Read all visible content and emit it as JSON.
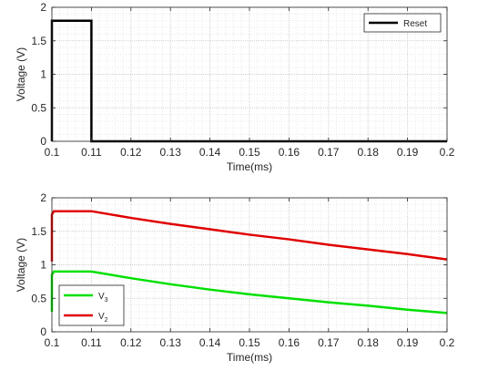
{
  "chart_data": [
    {
      "type": "line",
      "xlabel": "Time(ms)",
      "ylabel": "Voltage (V)",
      "xlim": [
        0.1,
        0.2
      ],
      "ylim": [
        0,
        2
      ],
      "xticks": [
        "0.1",
        "0.11",
        "0.12",
        "0.13",
        "0.14",
        "0.15",
        "0.16",
        "0.17",
        "0.18",
        "0.19",
        "0.2"
      ],
      "yticks": [
        "0",
        "0.5",
        "1",
        "1.5",
        "2"
      ],
      "grid": "on (major and minor, dotted)",
      "legend_location": "top-right",
      "series": [
        {
          "name": "Reset",
          "color": "#000000",
          "x": [
            0.1,
            0.1,
            0.11,
            0.11,
            0.2
          ],
          "y": [
            0,
            1.8,
            1.8,
            0,
            0
          ]
        }
      ]
    },
    {
      "type": "line",
      "xlabel": "Time(ms)",
      "ylabel": "Voltage (V)",
      "xlim": [
        0.1,
        0.2
      ],
      "ylim": [
        0,
        2
      ],
      "xticks": [
        "0.1",
        "0.11",
        "0.12",
        "0.13",
        "0.14",
        "0.15",
        "0.16",
        "0.17",
        "0.18",
        "0.19",
        "0.2"
      ],
      "yticks": [
        "0",
        "0.5",
        "1",
        "1.5",
        "2"
      ],
      "grid": "on (major and minor, dotted)",
      "legend_location": "bottom-left",
      "series": [
        {
          "name": "V",
          "subscript": "3",
          "color": "#00e000",
          "x": [
            0.1,
            0.1,
            0.1005,
            0.11,
            0.12,
            0.13,
            0.14,
            0.15,
            0.16,
            0.17,
            0.18,
            0.19,
            0.2
          ],
          "y": [
            0.3,
            0.85,
            0.9,
            0.9,
            0.8,
            0.71,
            0.63,
            0.56,
            0.5,
            0.44,
            0.39,
            0.33,
            0.28
          ]
        },
        {
          "name": "V",
          "subscript": "2",
          "color": "#e00000",
          "x": [
            0.1,
            0.1,
            0.1005,
            0.11,
            0.12,
            0.13,
            0.14,
            0.15,
            0.16,
            0.17,
            0.18,
            0.19,
            0.2
          ],
          "y": [
            1.05,
            1.75,
            1.8,
            1.8,
            1.7,
            1.61,
            1.53,
            1.45,
            1.38,
            1.3,
            1.23,
            1.16,
            1.08
          ]
        }
      ]
    }
  ]
}
